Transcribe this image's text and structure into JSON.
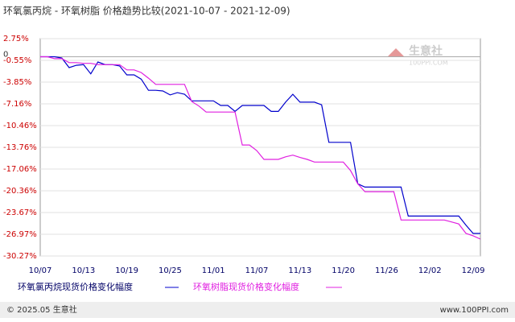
{
  "chart_data": {
    "type": "line",
    "title": "环氧氯丙烷 - 环氧树脂 价格趋势比较(2021-10-07 - 2021-12-09)",
    "categories": [
      "10/07",
      null,
      null,
      null,
      null,
      null,
      "10/13",
      null,
      null,
      null,
      null,
      null,
      "10/19",
      null,
      null,
      null,
      null,
      null,
      "10/25",
      null,
      null,
      null,
      null,
      null,
      "11/01",
      null,
      null,
      null,
      null,
      null,
      "11/07",
      null,
      null,
      null,
      null,
      null,
      "11/13",
      null,
      null,
      null,
      null,
      null,
      "11/20",
      null,
      null,
      null,
      null,
      null,
      "11/26",
      null,
      null,
      null,
      null,
      null,
      "12/02",
      null,
      null,
      null,
      null,
      null,
      "12/09",
      null
    ],
    "series": [
      {
        "name": "环氧氯丙烷现货价格变化幅度",
        "color": "#0000cc",
        "values": [
          0,
          0,
          0,
          -0.2,
          -1.65,
          -1.3,
          -1.2,
          -2.6,
          -0.8,
          -1.2,
          -1.2,
          -1.4,
          -2.75,
          -2.75,
          -3.4,
          -5.1,
          -5.1,
          -5.2,
          -5.8,
          -5.45,
          -5.7,
          -6.7,
          -6.7,
          -6.7,
          -6.7,
          -7.4,
          -7.4,
          -8.3,
          -7.4,
          -7.4,
          -7.4,
          -7.4,
          -8.3,
          -8.3,
          -6.9,
          -5.7,
          -6.9,
          -6.9,
          -6.9,
          -7.3,
          -13.0,
          -13.0,
          -13.0,
          -13.0,
          -19.3,
          -19.8,
          -19.8,
          -19.8,
          -19.8,
          -19.8,
          -19.8,
          -24.2,
          -24.2,
          -24.2,
          -24.2,
          -24.2,
          -24.2,
          -24.2,
          -24.2,
          -25.6,
          -26.85,
          -26.85
        ]
      },
      {
        "name": "环氧树脂现货价格变化幅度",
        "color": "#e020e0",
        "values": [
          0,
          0,
          -0.3,
          -0.3,
          -0.9,
          -0.9,
          -1.0,
          -1.0,
          -1.2,
          -1.2,
          -1.2,
          -1.2,
          -2.0,
          -2.0,
          -2.4,
          -3.25,
          -4.2,
          -4.2,
          -4.2,
          -4.2,
          -4.2,
          -6.8,
          -7.5,
          -8.4,
          -8.4,
          -8.4,
          -8.4,
          -8.4,
          -13.4,
          -13.4,
          -14.25,
          -15.6,
          -15.6,
          -15.6,
          -15.2,
          -14.95,
          -15.3,
          -15.6,
          -16.0,
          -16.0,
          -16.0,
          -16.0,
          -16.0,
          -17.3,
          -19.3,
          -20.5,
          -20.5,
          -20.5,
          -20.5,
          -20.5,
          -24.8,
          -24.8,
          -24.8,
          -24.8,
          -24.8,
          -24.8,
          -24.8,
          -25.1,
          -25.4,
          -26.85,
          -27.2,
          -27.7
        ]
      }
    ],
    "ylim": [
      -30.27,
      2.75
    ],
    "yticks": [
      {
        "value": 2.75,
        "label": "2.75%"
      },
      {
        "value": -0.55,
        "label": "-0.55%"
      },
      {
        "value": -3.85,
        "label": "-3.85%"
      },
      {
        "value": -7.16,
        "label": "-7.16%"
      },
      {
        "value": -10.46,
        "label": "-10.46%"
      },
      {
        "value": -13.76,
        "label": "-13.76%"
      },
      {
        "value": -17.06,
        "label": "-17.06%"
      },
      {
        "value": -20.36,
        "label": "-20.36%"
      },
      {
        "value": -23.67,
        "label": "-23.67%"
      },
      {
        "value": -26.97,
        "label": "-26.97%"
      },
      {
        "value": -30.27,
        "label": "-30.27%"
      }
    ],
    "annotations": [
      {
        "y": 0,
        "text": "0"
      }
    ],
    "grid": true
  },
  "watermark": {
    "name": "生意社",
    "site": "100PPI.COM"
  },
  "footer": {
    "left": "© 2025.05 生意社",
    "right": "www.100PPI.com"
  }
}
